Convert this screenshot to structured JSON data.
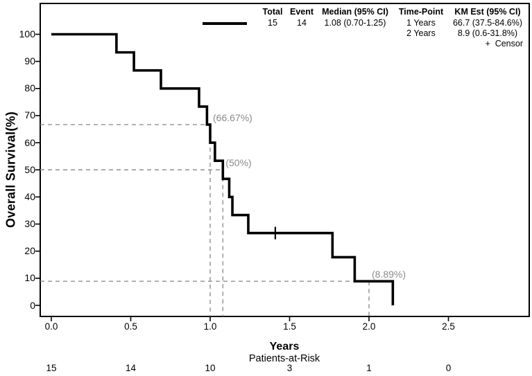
{
  "figure": {
    "y_axis_title": "Overall Survival(%)",
    "x_axis_title": "Years",
    "at_risk_title": "Patients-at-Risk"
  },
  "legend": {
    "columns": [
      {
        "header": "Total",
        "values": [
          "15"
        ]
      },
      {
        "header": "Event",
        "values": [
          "14"
        ]
      },
      {
        "header": "Median (95% CI)",
        "values": [
          "1.08 (0.70-1.25)"
        ]
      },
      {
        "header": "Time-Point",
        "values": [
          "1 Years",
          "2 Years"
        ]
      },
      {
        "header": "KM Est (95% CI)",
        "values": [
          "66.7 (37.5-84.6%)",
          "8.9 (0.6-31.8%)"
        ]
      }
    ],
    "censor_label": "+  Censor"
  },
  "chart_data": {
    "type": "line",
    "subtype": "kaplan-meier-step",
    "title": "",
    "xlabel": "Years",
    "ylabel": "Overall Survival(%)",
    "xlim": [
      0,
      3.0
    ],
    "ylim": [
      0,
      100
    ],
    "grid": false,
    "legend_position": "top-right",
    "x_ticks": [
      0,
      0.5,
      1.0,
      1.5,
      2.0,
      2.5
    ],
    "x_tick_labels": [
      "0.0",
      "0.5",
      "1.0",
      "1.5",
      "2.0",
      "2.5"
    ],
    "y_ticks": [
      0,
      10,
      20,
      30,
      40,
      50,
      60,
      70,
      80,
      90,
      100
    ],
    "series": [
      {
        "name": "Overall Survival",
        "steps": [
          [
            0,
            100
          ],
          [
            0.41,
            93.33
          ],
          [
            0.52,
            86.67
          ],
          [
            0.69,
            80
          ],
          [
            0.93,
            73.33
          ],
          [
            0.98,
            66.67
          ],
          [
            1.0,
            60
          ],
          [
            1.03,
            53.33
          ],
          [
            1.08,
            46.67
          ],
          [
            1.12,
            40
          ],
          [
            1.14,
            33.33
          ],
          [
            1.24,
            26.67
          ],
          [
            1.77,
            17.78
          ],
          [
            1.91,
            8.89
          ],
          [
            2.15,
            0
          ]
        ],
        "censors": [
          [
            1.41,
            26.67
          ]
        ]
      }
    ],
    "reference_annotations": [
      {
        "label": "(66.67%)",
        "x": 1.0,
        "y": 66.67
      },
      {
        "label": "(50%)",
        "x": 1.08,
        "y": 50
      },
      {
        "label": "(8.89%)",
        "x": 2.0,
        "y": 8.89
      }
    ],
    "at_risk": {
      "times": [
        0,
        0.5,
        1.0,
        1.5,
        2.0,
        2.5
      ],
      "counts": [
        15,
        14,
        10,
        3,
        1,
        0
      ]
    },
    "km_estimates": [
      {
        "time_point": "1 Years",
        "estimate": "66.7 (37.5-84.6%)"
      },
      {
        "time_point": "2 Years",
        "estimate": "8.9 (0.6-31.8%)"
      }
    ]
  },
  "colors": {
    "curve": "#000000",
    "frame": "#000000",
    "reference_line": "#8f8f8f",
    "reference_label": "#8a8a8a",
    "text": "#000000"
  }
}
